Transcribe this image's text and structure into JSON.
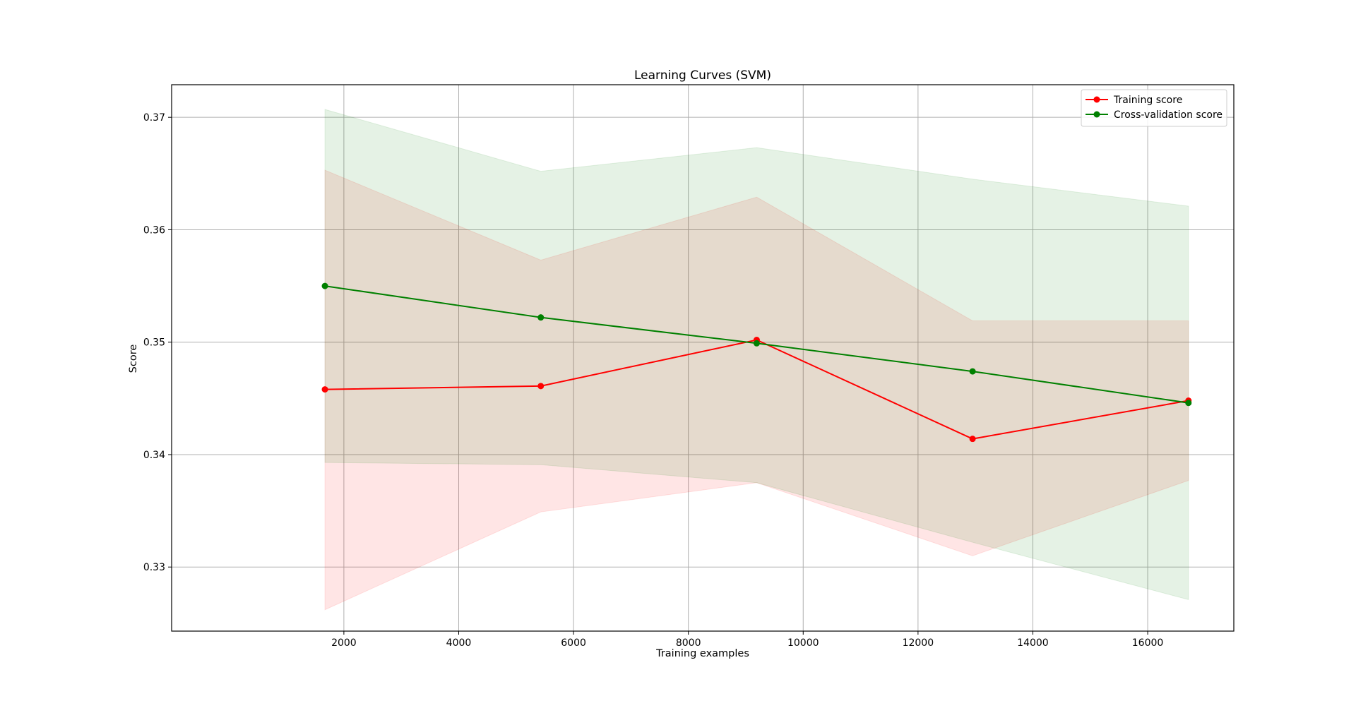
{
  "chart_data": {
    "type": "line",
    "title": "Learning Curves (SVM)",
    "xlabel": "Training examples",
    "ylabel": "Score",
    "xlim": [
      -1000,
      17500
    ],
    "ylim": [
      0.3243,
      0.3729
    ],
    "xticks": [
      2000,
      4000,
      6000,
      8000,
      10000,
      12000,
      14000,
      16000
    ],
    "xtick_labels": [
      "2000",
      "4000",
      "6000",
      "8000",
      "10000",
      "12000",
      "14000",
      "16000"
    ],
    "yticks": [
      0.33,
      0.34,
      0.35,
      0.36,
      0.37
    ],
    "ytick_labels": [
      "0.33",
      "0.34",
      "0.35",
      "0.36",
      "0.37"
    ],
    "grid": true,
    "legend_position": "upper-right",
    "x": [
      1670,
      5430,
      9190,
      12950,
      16710
    ],
    "series": [
      {
        "name": "Training score",
        "color": "#ff0000",
        "band_color": "#ff0000",
        "values": [
          0.3458,
          0.3461,
          0.3502,
          0.3414,
          0.3448
        ],
        "lower": [
          0.3262,
          0.3349,
          0.3375,
          0.331,
          0.3377
        ],
        "upper": [
          0.3653,
          0.3573,
          0.3629,
          0.3519,
          0.3519
        ]
      },
      {
        "name": "Cross-validation score",
        "color": "#008000",
        "band_color": "#008000",
        "values": [
          0.355,
          0.3522,
          0.3499,
          0.3474,
          0.3446
        ],
        "lower": [
          0.3393,
          0.3391,
          0.3375,
          0.3322,
          0.3271
        ],
        "upper": [
          0.3707,
          0.3652,
          0.3673,
          0.3645,
          0.3621
        ]
      }
    ]
  }
}
